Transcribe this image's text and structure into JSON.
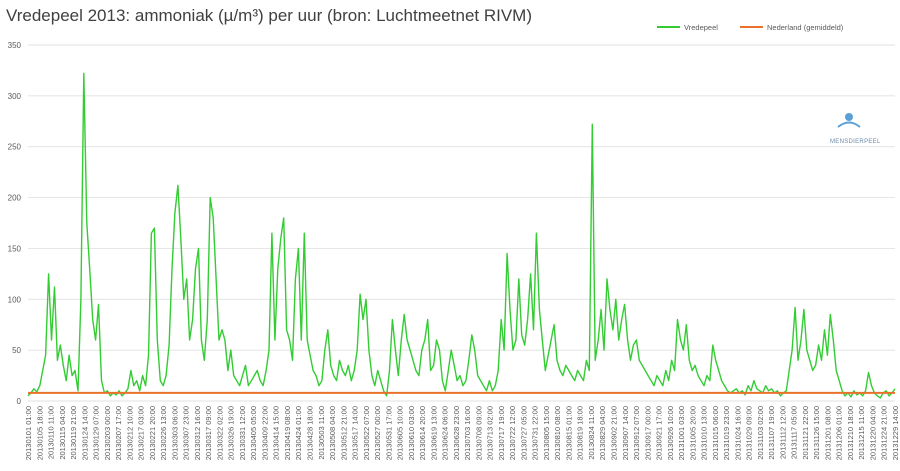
{
  "chart_data": {
    "type": "line",
    "title": "Vredepeel 2013: ammoniak (µ/m³) per uur (bron: Luchtmeetnet RIVM)",
    "xlabel": "",
    "ylabel": "",
    "ylim": [
      0,
      350
    ],
    "yticks": [
      0,
      50,
      100,
      150,
      200,
      250,
      300,
      350
    ],
    "grid": true,
    "legend": "top-right",
    "x_tick_labels": [
      "20130101 01:00",
      "20130105 18:00",
      "20130110 11:00",
      "20130115 04:00",
      "20130119 21:00",
      "20130124 14:00",
      "20130129 07:00",
      "20130203 00:00",
      "20130207 17:00",
      "20130212 10:00",
      "20130217 03:00",
      "20130221 20:00",
      "20130226 13:00",
      "20130303 06:00",
      "20130307 23:00",
      "20130312 16:00",
      "20130317 09:00",
      "20130322 02:00",
      "20130326 19:00",
      "20130331 12:00",
      "20130405 05:00",
      "20130409 22:00",
      "20130414 15:00",
      "20130419 08:00",
      "20130424 01:00",
      "20130428 18:00",
      "20130503 11:00",
      "20130508 04:00",
      "20130512 21:00",
      "20130517 14:00",
      "20130522 07:00",
      "20130527 00:00",
      "20130531 17:00",
      "20130605 10:00",
      "20130610 03:00",
      "20130614 20:00",
      "20130619 13:00",
      "20130624 06:00",
      "20130628 23:00",
      "20130703 16:00",
      "20130708 09:00",
      "20130713 02:00",
      "20130717 19:00",
      "20130722 12:00",
      "20130727 05:00",
      "20130731 22:00",
      "20130805 15:00",
      "20130810 08:00",
      "20130815 01:00",
      "20130819 18:00",
      "20130824 11:00",
      "20130829 04:00",
      "20130902 21:00",
      "20130907 14:00",
      "20130912 07:00",
      "20130917 00:00",
      "20130921 17:00",
      "20130926 10:00",
      "20131001 03:00",
      "20131005 20:00",
      "20131010 13:00",
      "20131015 06:00",
      "20131019 23:00",
      "20131024 16:00",
      "20131029 09:00",
      "20131103 02:00",
      "20131107 19:00",
      "20131112 12:00",
      "20131117 05:00",
      "20131121 22:00",
      "20131126 15:00",
      "20131201 08:00",
      "20131206 01:00",
      "20131210 18:00",
      "20131215 11:00",
      "20131220 04:00",
      "20131224 21:00",
      "20131229 14:00"
    ],
    "series": [
      {
        "name": "Vredepeel",
        "color": "#33cc33",
        "x_range": [
          "20130101 01:00",
          "20131231 23:00"
        ],
        "sampled_values": [
          5,
          8,
          12,
          9,
          15,
          30,
          45,
          125,
          60,
          112,
          40,
          55,
          35,
          20,
          45,
          25,
          30,
          10,
          100,
          322,
          175,
          130,
          80,
          60,
          95,
          20,
          8,
          10,
          5,
          8,
          6,
          10,
          5,
          8,
          12,
          30,
          15,
          20,
          10,
          25,
          15,
          45,
          165,
          170,
          60,
          20,
          15,
          25,
          55,
          130,
          185,
          212,
          160,
          100,
          120,
          60,
          80,
          130,
          150,
          60,
          40,
          80,
          200,
          180,
          120,
          60,
          70,
          60,
          30,
          50,
          25,
          20,
          15,
          25,
          35,
          15,
          20,
          25,
          30,
          20,
          15,
          30,
          50,
          165,
          60,
          130,
          160,
          180,
          70,
          60,
          40,
          120,
          150,
          60,
          165,
          60,
          45,
          30,
          25,
          15,
          20,
          50,
          70,
          35,
          25,
          20,
          40,
          30,
          25,
          35,
          20,
          30,
          50,
          105,
          80,
          100,
          50,
          25,
          15,
          30,
          20,
          10,
          5,
          30,
          80,
          50,
          25,
          60,
          85,
          60,
          50,
          40,
          30,
          25,
          50,
          60,
          80,
          30,
          35,
          60,
          50,
          20,
          10,
          30,
          50,
          35,
          20,
          25,
          15,
          20,
          40,
          65,
          50,
          25,
          20,
          15,
          10,
          20,
          10,
          15,
          30,
          80,
          50,
          145,
          90,
          50,
          60,
          120,
          65,
          55,
          80,
          125,
          70,
          165,
          90,
          60,
          30,
          45,
          60,
          75,
          40,
          30,
          25,
          35,
          30,
          25,
          20,
          30,
          25,
          20,
          40,
          30,
          272,
          40,
          60,
          90,
          50,
          120,
          90,
          70,
          100,
          60,
          80,
          95,
          60,
          40,
          55,
          60,
          40,
          35,
          30,
          25,
          20,
          15,
          25,
          20,
          15,
          30,
          20,
          40,
          30,
          80,
          60,
          50,
          75,
          40,
          30,
          35,
          25,
          20,
          15,
          25,
          20,
          55,
          40,
          30,
          20,
          15,
          10,
          8,
          10,
          12,
          8,
          10,
          6,
          15,
          10,
          20,
          12,
          10,
          8,
          15,
          10,
          12,
          8,
          10,
          5,
          8,
          10,
          30,
          50,
          92,
          40,
          60,
          90,
          50,
          40,
          30,
          35,
          55,
          40,
          70,
          45,
          85,
          60,
          30,
          20,
          10,
          5,
          8,
          4,
          10,
          6,
          8,
          5,
          10,
          28,
          15,
          8,
          5,
          3,
          8,
          10,
          5,
          8,
          12
        ]
      },
      {
        "name": "Nederland (gemiddeld)",
        "color": "#e8712b",
        "values": [
          8,
          8
        ]
      }
    ]
  },
  "logo": {
    "text": "MENSDIERPEEL"
  }
}
